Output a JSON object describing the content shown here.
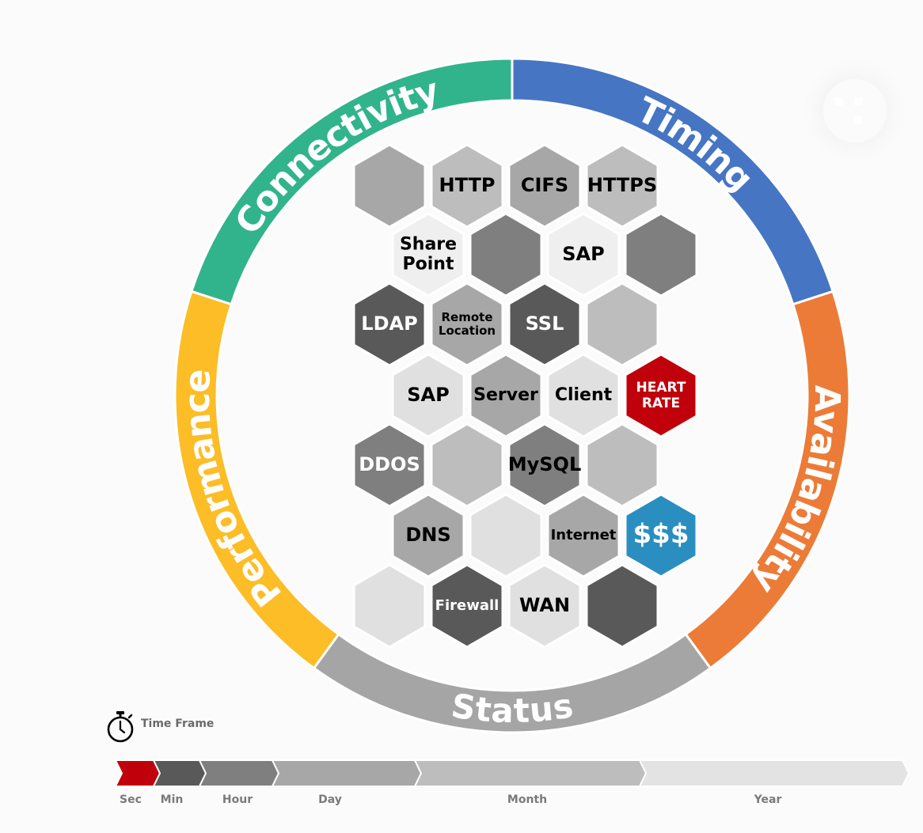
{
  "ring": [
    {
      "label": "Connectivity",
      "color": "#31b48b"
    },
    {
      "label": "Timing",
      "color": "#4675c4"
    },
    {
      "label": "Availability",
      "color": "#ec7b37"
    },
    {
      "label": "Status",
      "color": "#a5a5a5"
    },
    {
      "label": "Performance",
      "color": "#fdbd26"
    }
  ],
  "hexagons": [
    {
      "label": "",
      "color": "#a7a7a7",
      "text_color": "#000000"
    },
    {
      "label": "HTTP",
      "color": "#bdbdbd",
      "text_color": "#000000"
    },
    {
      "label": "CIFS",
      "color": "#a7a7a7",
      "text_color": "#000000"
    },
    {
      "label": "HTTPS",
      "color": "#bdbdbd",
      "text_color": "#000000"
    },
    {
      "label": "Share\nPoint",
      "color": "#efefef",
      "text_color": "#000000"
    },
    {
      "label": "",
      "color": "#7f7f7f",
      "text_color": "#000000"
    },
    {
      "label": "SAP",
      "color": "#efefef",
      "text_color": "#000000"
    },
    {
      "label": "",
      "color": "#7f7f7f",
      "text_color": "#000000"
    },
    {
      "label": "LDAP",
      "color": "#595959",
      "text_color": "#ffffff"
    },
    {
      "label": "Remote\nLocation",
      "color": "#a7a7a7",
      "text_color": "#000000"
    },
    {
      "label": "SSL",
      "color": "#595959",
      "text_color": "#ffffff"
    },
    {
      "label": "",
      "color": "#bdbdbd",
      "text_color": "#000000"
    },
    {
      "label": "SAP",
      "color": "#e0e0e0",
      "text_color": "#000000"
    },
    {
      "label": "Server",
      "color": "#a7a7a7",
      "text_color": "#000000"
    },
    {
      "label": "Client",
      "color": "#e0e0e0",
      "text_color": "#000000"
    },
    {
      "label": "HEART\nRATE",
      "color": "#c0000b",
      "text_color": "#ffffff"
    },
    {
      "label": "DDOS",
      "color": "#7f7f7f",
      "text_color": "#ffffff"
    },
    {
      "label": "",
      "color": "#bdbdbd",
      "text_color": "#000000"
    },
    {
      "label": "MySQL",
      "color": "#7f7f7f",
      "text_color": "#000000"
    },
    {
      "label": "",
      "color": "#bdbdbd",
      "text_color": "#000000"
    },
    {
      "label": "DNS",
      "color": "#a7a7a7",
      "text_color": "#000000"
    },
    {
      "label": "",
      "color": "#e0e0e0",
      "text_color": "#000000"
    },
    {
      "label": "Internet",
      "color": "#a7a7a7",
      "text_color": "#000000"
    },
    {
      "label": "$$$",
      "color": "#2b8ec0",
      "text_color": "#ffffff"
    },
    {
      "label": "",
      "color": "#e0e0e0",
      "text_color": "#000000"
    },
    {
      "label": "Firewall",
      "color": "#595959",
      "text_color": "#ffffff"
    },
    {
      "label": "WAN",
      "color": "#e0e0e0",
      "text_color": "#000000"
    },
    {
      "label": "",
      "color": "#595959",
      "text_color": "#000000"
    }
  ],
  "time_frame": {
    "title": "Time Frame",
    "segments": [
      {
        "label": "Sec",
        "color": "#c0000b"
      },
      {
        "label": "Min",
        "color": "#595959"
      },
      {
        "label": "Hour",
        "color": "#7f7f7f"
      },
      {
        "label": "Day",
        "color": "#a7a7a7"
      },
      {
        "label": "Month",
        "color": "#bdbdbd"
      },
      {
        "label": "Year",
        "color": "#e3e3e3"
      }
    ]
  }
}
